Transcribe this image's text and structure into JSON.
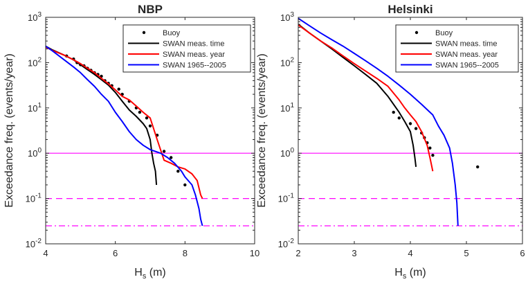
{
  "chart_data": [
    {
      "type": "line",
      "title": "NBP",
      "xlabel": "H",
      "xlabel_sub": "s",
      "xlabel_unit": "(m)",
      "ylabel": "Exceedance freq. (events/year)",
      "xlim": [
        4,
        10
      ],
      "ylim": [
        0.01,
        1000
      ],
      "yscale": "log",
      "xticks": [
        "4",
        "6",
        "8",
        "10"
      ],
      "yticks": [
        {
          "base": "10",
          "exp": "-2"
        },
        {
          "base": "10",
          "exp": "-1"
        },
        {
          "base": "10",
          "exp": "0"
        },
        {
          "base": "10",
          "exp": "1"
        },
        {
          "base": "10",
          "exp": "2"
        },
        {
          "base": "10",
          "exp": "3"
        }
      ],
      "legend_position": "top-right",
      "reference_lines": [
        {
          "y": 1,
          "style": "solid",
          "color": "#ff00ff"
        },
        {
          "y": 0.1,
          "style": "dashed",
          "color": "#ff00ff"
        },
        {
          "y": 0.025,
          "style": "dashdot",
          "color": "#ff00ff"
        }
      ],
      "series": [
        {
          "name": "Buoy",
          "kind": "scatter",
          "color": "#000000",
          "points": [
            [
              4.6,
              140
            ],
            [
              4.8,
              120
            ],
            [
              4.9,
              100
            ],
            [
              5.0,
              90
            ],
            [
              5.1,
              85
            ],
            [
              5.2,
              75
            ],
            [
              5.3,
              68
            ],
            [
              5.4,
              60
            ],
            [
              5.5,
              55
            ],
            [
              5.6,
              50
            ],
            [
              5.7,
              40
            ],
            [
              5.8,
              35
            ],
            [
              5.9,
              31
            ],
            [
              6.1,
              26
            ],
            [
              6.2,
              20
            ],
            [
              6.4,
              14
            ],
            [
              6.6,
              10
            ],
            [
              6.7,
              8
            ],
            [
              6.9,
              6
            ],
            [
              7.0,
              4
            ],
            [
              7.2,
              2.5
            ],
            [
              7.4,
              1.1
            ],
            [
              7.6,
              0.8
            ],
            [
              7.8,
              0.4
            ],
            [
              8.0,
              0.2
            ]
          ]
        },
        {
          "name": "SWAN meas. time",
          "kind": "line",
          "color": "#000000",
          "points": [
            [
              4.0,
              230
            ],
            [
              4.2,
              190
            ],
            [
              4.5,
              150
            ],
            [
              4.8,
              115
            ],
            [
              5.0,
              90
            ],
            [
              5.2,
              70
            ],
            [
              5.4,
              55
            ],
            [
              5.6,
              42
            ],
            [
              5.8,
              32
            ],
            [
              6.0,
              22
            ],
            [
              6.2,
              14
            ],
            [
              6.4,
              9
            ],
            [
              6.6,
              6.5
            ],
            [
              6.8,
              4.5
            ],
            [
              6.9,
              3.5
            ],
            [
              7.0,
              2
            ],
            [
              7.05,
              1
            ],
            [
              7.1,
              0.6
            ],
            [
              7.15,
              0.4
            ],
            [
              7.18,
              0.2
            ]
          ]
        },
        {
          "name": "SWAN meas. year",
          "kind": "line",
          "color": "#ff0000",
          "points": [
            [
              4.0,
              220
            ],
            [
              4.2,
              185
            ],
            [
              4.5,
              150
            ],
            [
              4.8,
              115
            ],
            [
              5.0,
              95
            ],
            [
              5.2,
              75
            ],
            [
              5.4,
              60
            ],
            [
              5.6,
              45
            ],
            [
              5.8,
              34
            ],
            [
              6.0,
              25
            ],
            [
              6.2,
              18
            ],
            [
              6.4,
              15
            ],
            [
              6.6,
              11
            ],
            [
              6.8,
              8
            ],
            [
              7.0,
              6
            ],
            [
              7.2,
              2
            ],
            [
              7.4,
              0.7
            ],
            [
              7.6,
              0.6
            ],
            [
              7.8,
              0.5
            ],
            [
              8.0,
              0.45
            ],
            [
              8.2,
              0.35
            ],
            [
              8.35,
              0.25
            ],
            [
              8.45,
              0.12
            ],
            [
              8.5,
              0.1
            ]
          ]
        },
        {
          "name": "SWAN 1965--2005",
          "kind": "line",
          "color": "#0000ff",
          "points": [
            [
              4.0,
              230
            ],
            [
              4.2,
              180
            ],
            [
              4.5,
              120
            ],
            [
              4.8,
              80
            ],
            [
              5.0,
              60
            ],
            [
              5.2,
              42
            ],
            [
              5.4,
              30
            ],
            [
              5.6,
              20
            ],
            [
              5.8,
              14
            ],
            [
              6.0,
              8
            ],
            [
              6.2,
              5
            ],
            [
              6.4,
              3
            ],
            [
              6.6,
              2
            ],
            [
              6.8,
              1.5
            ],
            [
              7.0,
              1.2
            ],
            [
              7.3,
              1.0
            ],
            [
              7.5,
              0.8
            ],
            [
              7.7,
              0.6
            ],
            [
              7.9,
              0.4
            ],
            [
              8.0,
              0.3
            ],
            [
              8.2,
              0.2
            ],
            [
              8.3,
              0.12
            ],
            [
              8.4,
              0.06
            ],
            [
              8.45,
              0.035
            ],
            [
              8.5,
              0.025
            ]
          ]
        }
      ]
    },
    {
      "type": "line",
      "title": "Helsinki",
      "xlabel": "H",
      "xlabel_sub": "s",
      "xlabel_unit": "(m)",
      "ylabel": "Exceedance freq. (events/year)",
      "xlim": [
        2,
        6
      ],
      "ylim": [
        0.01,
        1000
      ],
      "yscale": "log",
      "xticks": [
        "2",
        "3",
        "4",
        "5",
        "6"
      ],
      "yticks": [
        {
          "base": "10",
          "exp": "-2"
        },
        {
          "base": "10",
          "exp": "-1"
        },
        {
          "base": "10",
          "exp": "0"
        },
        {
          "base": "10",
          "exp": "1"
        },
        {
          "base": "10",
          "exp": "2"
        },
        {
          "base": "10",
          "exp": "3"
        }
      ],
      "legend_position": "top-right",
      "reference_lines": [
        {
          "y": 1,
          "style": "solid",
          "color": "#ff00ff"
        },
        {
          "y": 0.1,
          "style": "dashed",
          "color": "#ff00ff"
        },
        {
          "y": 0.025,
          "style": "dashdot",
          "color": "#ff00ff"
        }
      ],
      "series": [
        {
          "name": "Buoy",
          "kind": "scatter",
          "color": "#000000",
          "points": [
            [
              3.7,
              8
            ],
            [
              3.8,
              6
            ],
            [
              4.0,
              4.5
            ],
            [
              4.1,
              3.5
            ],
            [
              4.2,
              2.8
            ],
            [
              4.25,
              2.2
            ],
            [
              4.3,
              1.7
            ],
            [
              4.35,
              1.3
            ],
            [
              4.4,
              0.9
            ],
            [
              5.2,
              0.5
            ]
          ]
        },
        {
          "name": "SWAN meas. time",
          "kind": "line",
          "color": "#000000",
          "points": [
            [
              2.0,
              700
            ],
            [
              2.2,
              450
            ],
            [
              2.4,
              300
            ],
            [
              2.6,
              200
            ],
            [
              2.8,
              130
            ],
            [
              3.0,
              85
            ],
            [
              3.2,
              55
            ],
            [
              3.4,
              35
            ],
            [
              3.6,
              18
            ],
            [
              3.8,
              8
            ],
            [
              3.9,
              5
            ],
            [
              4.0,
              3
            ],
            [
              4.05,
              1.5
            ],
            [
              4.08,
              0.8
            ],
            [
              4.1,
              0.5
            ]
          ]
        },
        {
          "name": "SWAN meas. year",
          "kind": "line",
          "color": "#ff0000",
          "points": [
            [
              2.0,
              680
            ],
            [
              2.2,
              450
            ],
            [
              2.4,
              300
            ],
            [
              2.6,
              210
            ],
            [
              2.8,
              140
            ],
            [
              3.0,
              95
            ],
            [
              3.2,
              65
            ],
            [
              3.4,
              45
            ],
            [
              3.6,
              30
            ],
            [
              3.8,
              15
            ],
            [
              3.9,
              10
            ],
            [
              4.0,
              7
            ],
            [
              4.1,
              5
            ],
            [
              4.2,
              3
            ],
            [
              4.3,
              1.5
            ],
            [
              4.35,
              0.8
            ],
            [
              4.4,
              0.4
            ]
          ]
        },
        {
          "name": "SWAN 1965--2005",
          "kind": "line",
          "color": "#0000ff",
          "points": [
            [
              2.0,
              950
            ],
            [
              2.2,
              650
            ],
            [
              2.4,
              450
            ],
            [
              2.6,
              320
            ],
            [
              2.8,
              230
            ],
            [
              3.0,
              160
            ],
            [
              3.2,
              110
            ],
            [
              3.4,
              75
            ],
            [
              3.6,
              50
            ],
            [
              3.8,
              32
            ],
            [
              4.0,
              20
            ],
            [
              4.2,
              12
            ],
            [
              4.4,
              7
            ],
            [
              4.5,
              4
            ],
            [
              4.6,
              2.5
            ],
            [
              4.7,
              1.3
            ],
            [
              4.75,
              0.6
            ],
            [
              4.8,
              0.2
            ],
            [
              4.83,
              0.08
            ],
            [
              4.85,
              0.025
            ]
          ]
        }
      ]
    }
  ]
}
